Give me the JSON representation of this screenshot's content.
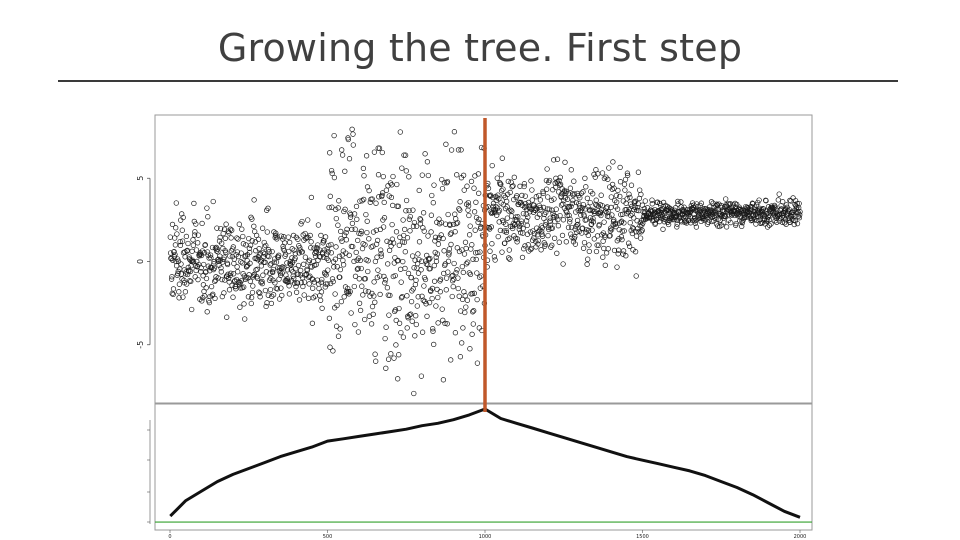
{
  "slide": {
    "title": "Growing the tree. First step"
  },
  "colors": {
    "split_line": "#c0582a",
    "baseline": "#33a02c",
    "points": "#1a1a1a",
    "frame": "#9a9a9a"
  },
  "chart_data": [
    {
      "type": "scatter",
      "title": "",
      "xlabel": "",
      "ylabel": "",
      "xlim": [
        0,
        2100
      ],
      "ylim": [
        -8.2,
        8.5
      ],
      "yticks": [
        "-5",
        "0",
        "5"
      ],
      "marker": "open-circle",
      "split_x": 1000,
      "segments": [
        {
          "x_range": [
            1,
            500
          ],
          "mean": 0,
          "sd": 1.3
        },
        {
          "x_range": [
            501,
            1000
          ],
          "mean": 0.5,
          "sd": 3.3
        },
        {
          "x_range": [
            1001,
            1500
          ],
          "mean": 2.8,
          "sd": 1.3
        },
        {
          "x_range": [
            1501,
            2000
          ],
          "mean": 2.9,
          "sd": 0.35
        }
      ],
      "grid": false,
      "legend": "none"
    },
    {
      "type": "line",
      "title": "",
      "xlabel": "",
      "ylabel": "",
      "xlim": [
        0,
        2100
      ],
      "xticks": [
        "0",
        "500",
        "1000",
        "1500",
        "2000"
      ],
      "ylim": [
        0,
        1
      ],
      "series": [
        {
          "x": [
            1,
            50,
            100,
            150,
            200,
            250,
            300,
            350,
            400,
            450,
            500,
            550,
            600,
            650,
            700,
            750,
            800,
            850,
            900,
            950,
            1000,
            1050,
            1100,
            1150,
            1200,
            1250,
            1300,
            1350,
            1400,
            1450,
            1500,
            1550,
            1600,
            1650,
            1700,
            1750,
            1800,
            1850,
            1900,
            1950,
            2000
          ],
          "y": [
            0.1,
            0.23,
            0.31,
            0.39,
            0.45,
            0.5,
            0.55,
            0.6,
            0.64,
            0.68,
            0.73,
            0.75,
            0.77,
            0.79,
            0.81,
            0.83,
            0.86,
            0.88,
            0.91,
            0.95,
            1.0,
            0.92,
            0.88,
            0.84,
            0.8,
            0.76,
            0.72,
            0.68,
            0.64,
            0.6,
            0.57,
            0.54,
            0.51,
            0.48,
            0.44,
            0.39,
            0.34,
            0.28,
            0.21,
            0.14,
            0.09
          ]
        }
      ],
      "hline": 0.05,
      "grid": false,
      "legend": "none"
    }
  ]
}
